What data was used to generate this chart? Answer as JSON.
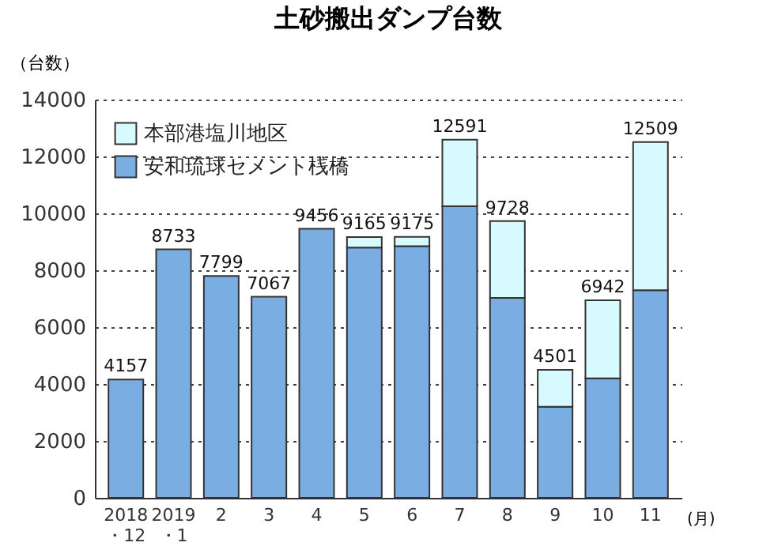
{
  "chart_data": {
    "type": "bar",
    "title": "土砂搬出ダンプ台数",
    "ylabel": "（台数）",
    "xlabel": "(月)",
    "categories": [
      "2018・12",
      "2019・1",
      "2",
      "3",
      "4",
      "5",
      "6",
      "7",
      "8",
      "9",
      "10",
      "11"
    ],
    "stacked": true,
    "series": [
      {
        "name": "安和琉球セメント桟橋",
        "color": "#7aaee3",
        "values": [
          4157,
          8733,
          7799,
          7067,
          9456,
          8800,
          8850,
          10250,
          7025,
          3200,
          4200,
          7300
        ]
      },
      {
        "name": "本部港塩川地区",
        "color": "#d6fafd",
        "values": [
          null,
          null,
          null,
          null,
          null,
          365,
          325,
          2341,
          2703,
          1301,
          2742,
          5209
        ]
      }
    ],
    "totals": [
      "4157",
      "8733",
      "7799",
      "7067",
      "9456",
      "9165",
      "9175",
      "12591",
      "9728",
      "4501",
      "6942",
      "12509"
    ],
    "ylim": [
      0,
      14000
    ],
    "yticks": [
      0,
      2000,
      4000,
      6000,
      8000,
      10000,
      12000,
      14000
    ],
    "grid": "y",
    "legend": "top left"
  }
}
